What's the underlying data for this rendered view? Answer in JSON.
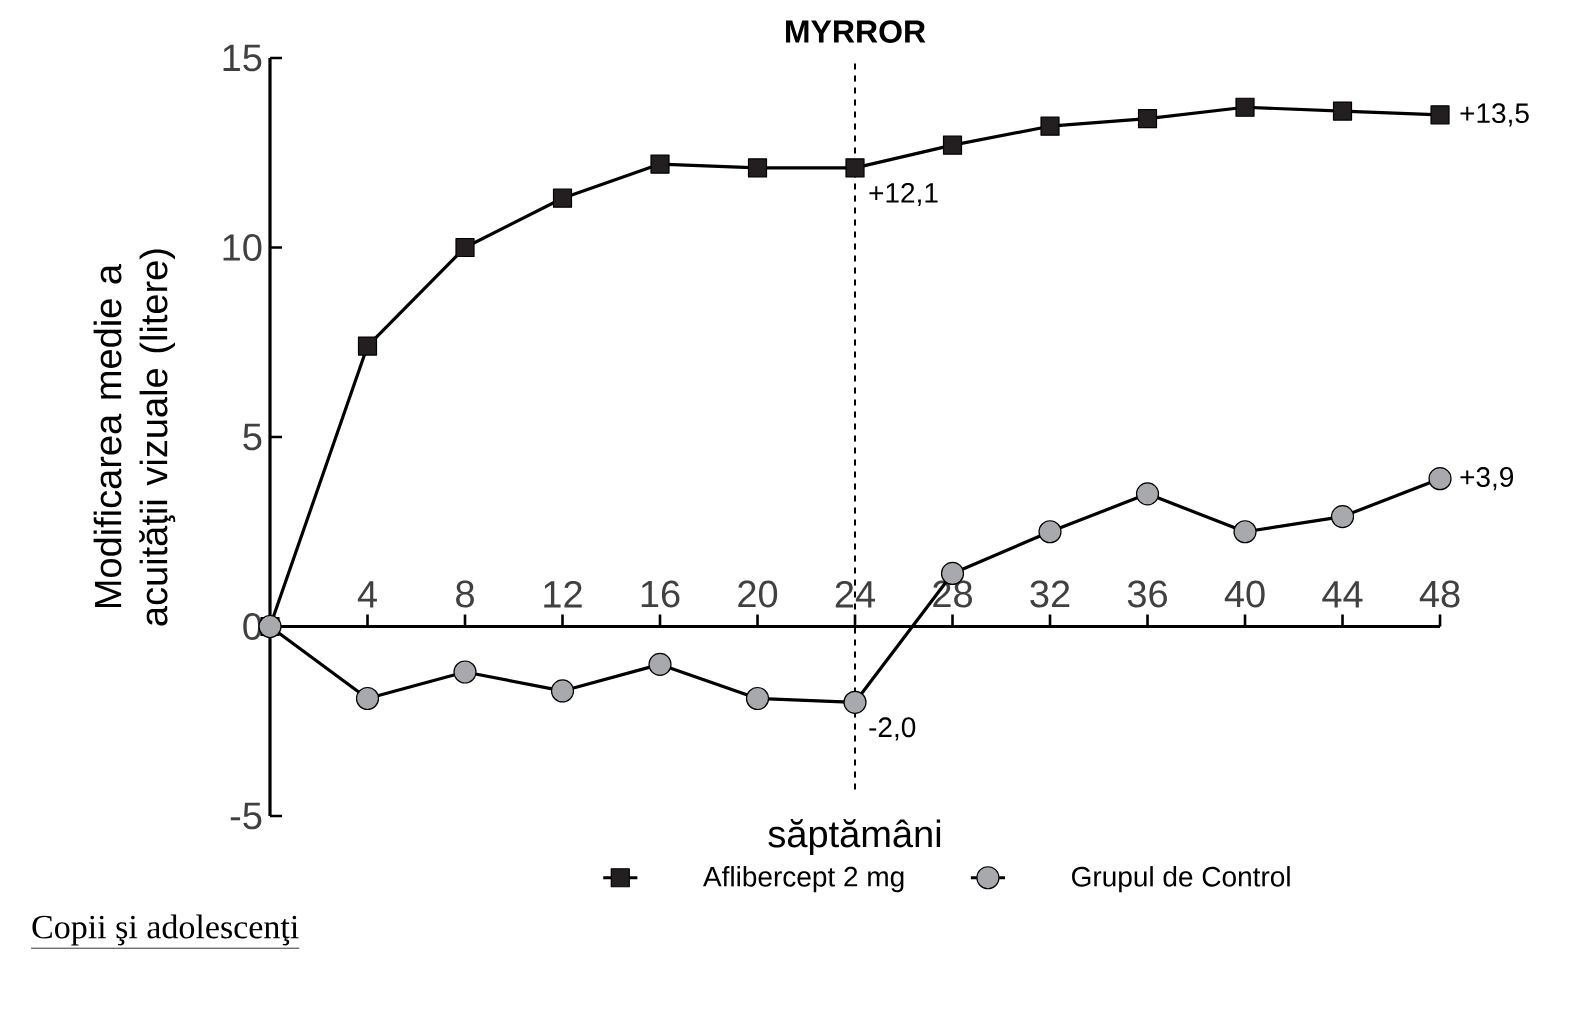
{
  "chart_data": {
    "type": "line",
    "xlabel": "săptămâni",
    "ylabel": "Modificarea medie a acuităţii vizuale (litere)",
    "x": [
      0,
      4,
      8,
      12,
      16,
      20,
      24,
      28,
      32,
      36,
      40,
      44,
      48
    ],
    "series": [
      {
        "name": "Aflibercept 2 mg",
        "color": "#231f20",
        "marker": "square",
        "values": [
          0,
          7.4,
          10.0,
          11.3,
          12.2,
          12.1,
          12.1,
          12.7,
          13.2,
          13.4,
          13.7,
          13.6,
          13.5
        ],
        "value_labels": [
          null,
          null,
          null,
          null,
          null,
          null,
          "+12,1",
          null,
          null,
          null,
          null,
          null,
          "+13,5"
        ]
      },
      {
        "name": "Grupul de Control",
        "color": "#a7a9ac",
        "marker": "circle",
        "values": [
          0,
          -1.9,
          -1.2,
          -1.7,
          -1.0,
          -1.9,
          -2.0,
          1.4,
          2.5,
          3.5,
          2.5,
          2.9,
          3.9
        ],
        "value_labels": [
          null,
          null,
          null,
          null,
          null,
          null,
          "-2,0",
          null,
          null,
          null,
          null,
          null,
          "+3,9"
        ]
      }
    ],
    "xlim": [
      0,
      48
    ],
    "xticks": [
      4,
      8,
      12,
      16,
      20,
      24,
      28,
      32,
      36,
      40,
      44,
      48
    ],
    "ylim": [
      -5,
      15
    ],
    "yticks": [
      -5,
      0,
      5,
      10,
      15
    ],
    "ref_lines": [
      {
        "axis": "x",
        "value": 24,
        "label": "MYRROR",
        "line_style": "dashed"
      }
    ],
    "legend": "bottom",
    "line_style": "solid",
    "annotations": [
      "Copii şi adolescenţi"
    ]
  }
}
